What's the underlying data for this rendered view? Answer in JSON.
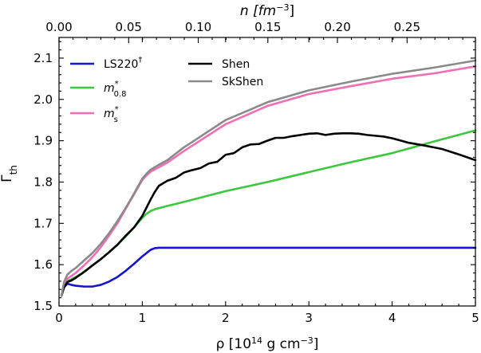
{
  "chart_data": {
    "type": "line",
    "xlabel": {
      "pre": "ρ [10",
      "sup": "14",
      "post": " g cm",
      "sup2": "−3",
      "end": "]"
    },
    "ylabel": {
      "main": "Γ",
      "sub": "th"
    },
    "top_label": {
      "pre": "n [fm",
      "sup": "−3",
      "end": "]"
    },
    "xlim": [
      0,
      5
    ],
    "ylim": [
      1.5,
      2.15
    ],
    "top_xlim": [
      0,
      0.2991
    ],
    "x_ticks": [
      "0",
      "1",
      "2",
      "3",
      "4",
      "5"
    ],
    "y_ticks": [
      "1.5",
      "1.6",
      "1.7",
      "1.8",
      "1.9",
      "2.0",
      "2.1"
    ],
    "top_ticks": [
      "0.00",
      "0.05",
      "0.10",
      "0.15",
      "0.20",
      "0.25"
    ],
    "series": [
      {
        "name": "LS220†",
        "label": {
          "main": "LS220",
          "sup": "†"
        },
        "color": "#1515d0",
        "x": [
          0.03,
          0.06,
          0.1,
          0.15,
          0.2,
          0.3,
          0.4,
          0.5,
          0.6,
          0.7,
          0.8,
          0.9,
          1.0,
          1.05,
          1.1,
          1.15,
          1.2,
          1.25,
          1.3,
          1.5,
          2.0,
          2.5,
          3.0,
          3.5,
          4.0,
          4.5,
          5.0
        ],
        "y": [
          1.525,
          1.545,
          1.554,
          1.551,
          1.549,
          1.547,
          1.547,
          1.551,
          1.559,
          1.57,
          1.585,
          1.602,
          1.62,
          1.628,
          1.636,
          1.64,
          1.641,
          1.641,
          1.641,
          1.641,
          1.641,
          1.641,
          1.641,
          1.641,
          1.641,
          1.641,
          1.641
        ]
      },
      {
        "name": "m*0.8",
        "label": {
          "main": "m",
          "sup": "*",
          "sub": "0.8"
        },
        "color": "#3cc83c",
        "x": [
          0.03,
          0.06,
          0.1,
          0.15,
          0.2,
          0.3,
          0.4,
          0.5,
          0.6,
          0.7,
          0.8,
          0.9,
          1.0,
          1.05,
          1.1,
          1.15,
          1.2,
          1.3,
          1.5,
          2.0,
          2.5,
          3.0,
          3.5,
          4.0,
          4.5,
          5.0
        ],
        "y": [
          1.525,
          1.545,
          1.56,
          1.565,
          1.57,
          1.583,
          1.598,
          1.613,
          1.63,
          1.648,
          1.668,
          1.69,
          1.713,
          1.723,
          1.73,
          1.734,
          1.737,
          1.742,
          1.752,
          1.778,
          1.8,
          1.824,
          1.848,
          1.87,
          1.898,
          1.925
        ]
      },
      {
        "name": "m*s",
        "label": {
          "main": "m",
          "sup": "*",
          "sub": "s"
        },
        "color": "#f06eb4",
        "x": [
          0.03,
          0.06,
          0.1,
          0.15,
          0.2,
          0.3,
          0.4,
          0.5,
          0.6,
          0.7,
          0.8,
          0.9,
          1.0,
          1.05,
          1.1,
          1.2,
          1.3,
          1.5,
          2.0,
          2.5,
          3.0,
          3.5,
          4.0,
          4.5,
          5.0
        ],
        "y": [
          1.525,
          1.55,
          1.566,
          1.573,
          1.58,
          1.598,
          1.618,
          1.642,
          1.67,
          1.7,
          1.735,
          1.77,
          1.805,
          1.816,
          1.825,
          1.836,
          1.847,
          1.875,
          1.94,
          1.984,
          2.013,
          2.032,
          2.05,
          2.063,
          2.08
        ]
      },
      {
        "name": "Shen",
        "label": {
          "main": "Shen"
        },
        "color": "#000000",
        "x": [
          0.03,
          0.06,
          0.1,
          0.15,
          0.2,
          0.3,
          0.4,
          0.5,
          0.6,
          0.7,
          0.8,
          0.9,
          1.0,
          1.05,
          1.1,
          1.15,
          1.2,
          1.3,
          1.4,
          1.5,
          1.6,
          1.7,
          1.8,
          1.9,
          2.0,
          2.1,
          2.2,
          2.3,
          2.4,
          2.5,
          2.6,
          2.7,
          2.8,
          2.9,
          3.0,
          3.1,
          3.2,
          3.3,
          3.4,
          3.5,
          3.6,
          3.7,
          3.8,
          3.9,
          4.0,
          4.2,
          4.4,
          4.6,
          4.8,
          5.0
        ],
        "y": [
          1.525,
          1.545,
          1.558,
          1.562,
          1.568,
          1.582,
          1.598,
          1.613,
          1.63,
          1.648,
          1.67,
          1.69,
          1.718,
          1.738,
          1.758,
          1.776,
          1.791,
          1.803,
          1.81,
          1.823,
          1.829,
          1.834,
          1.845,
          1.849,
          1.866,
          1.87,
          1.884,
          1.891,
          1.892,
          1.9,
          1.907,
          1.907,
          1.911,
          1.914,
          1.917,
          1.918,
          1.914,
          1.917,
          1.918,
          1.918,
          1.917,
          1.914,
          1.912,
          1.91,
          1.906,
          1.895,
          1.888,
          1.88,
          1.867,
          1.853
        ]
      },
      {
        "name": "SkShen",
        "label": {
          "main": "SkShen"
        },
        "color": "#8a8a8a",
        "x": [
          0.03,
          0.06,
          0.1,
          0.15,
          0.2,
          0.3,
          0.4,
          0.5,
          0.6,
          0.7,
          0.8,
          0.9,
          1.0,
          1.05,
          1.1,
          1.2,
          1.3,
          1.5,
          2.0,
          2.5,
          3.0,
          3.5,
          4.0,
          4.5,
          5.0
        ],
        "y": [
          1.525,
          1.558,
          1.576,
          1.585,
          1.592,
          1.61,
          1.628,
          1.65,
          1.676,
          1.705,
          1.737,
          1.772,
          1.808,
          1.82,
          1.83,
          1.842,
          1.853,
          1.884,
          1.95,
          1.993,
          2.022,
          2.043,
          2.062,
          2.077,
          2.094
        ]
      }
    ]
  }
}
